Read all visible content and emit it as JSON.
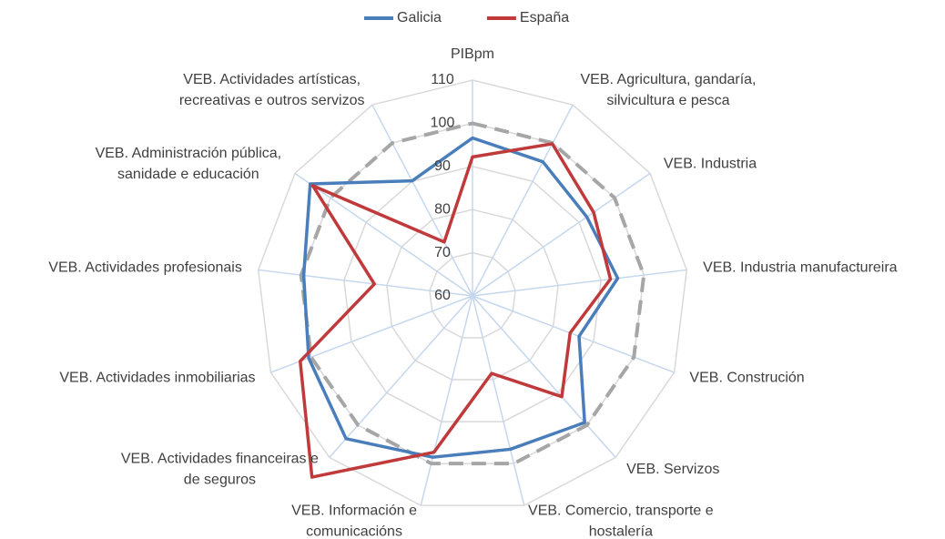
{
  "chart_data": {
    "type": "radar",
    "categories": [
      [
        "PIBpm"
      ],
      [
        "VEB. Agricultura, gandaría,",
        "silvicultura e pesca"
      ],
      [
        "VEB. Industria"
      ],
      [
        "VEB. Industria manufactureira"
      ],
      [
        "VEB. Construción"
      ],
      [
        "VEB. Servizos"
      ],
      [
        "VEB. Comercio, transporte e",
        "hostalería"
      ],
      [
        "VEB. Información e",
        "comunicacións"
      ],
      [
        "VEB. Actividades financeiras e",
        "de seguros"
      ],
      [
        "VEB. Actividades inmobiliarias"
      ],
      [
        "VEB. Actividades profesionais"
      ],
      [
        "VEB. Administración pública,",
        "sanidade e educación"
      ],
      [
        "VEB. Actividades artísticas,",
        "recreativas e outros servizos"
      ]
    ],
    "series": [
      {
        "color": "#a6a6a6",
        "dashed": true,
        "values": [
          100,
          100,
          100,
          100,
          100,
          100,
          100,
          100,
          100,
          100,
          100,
          100,
          100
        ]
      },
      {
        "name": "Galicia",
        "color": "#4a7ebb",
        "values": [
          96.6,
          95.1,
          92.2,
          93.9,
          86.4,
          99.2,
          96.6,
          98.5,
          104.2,
          100.6,
          99.4,
          105.7,
          90.1
        ]
      },
      {
        "name": "España",
        "color": "#c0393b",
        "values": [
          92.2,
          99.8,
          94.1,
          92.2,
          84.2,
          91.2,
          78.5,
          97.3,
          116.1,
          102.7,
          82.9,
          105.0,
          74.1
        ]
      }
    ],
    "ylim": [
      60,
      110
    ],
    "yticks": [
      60,
      70,
      80,
      90,
      100,
      110
    ],
    "grid": true,
    "legend": "top"
  }
}
